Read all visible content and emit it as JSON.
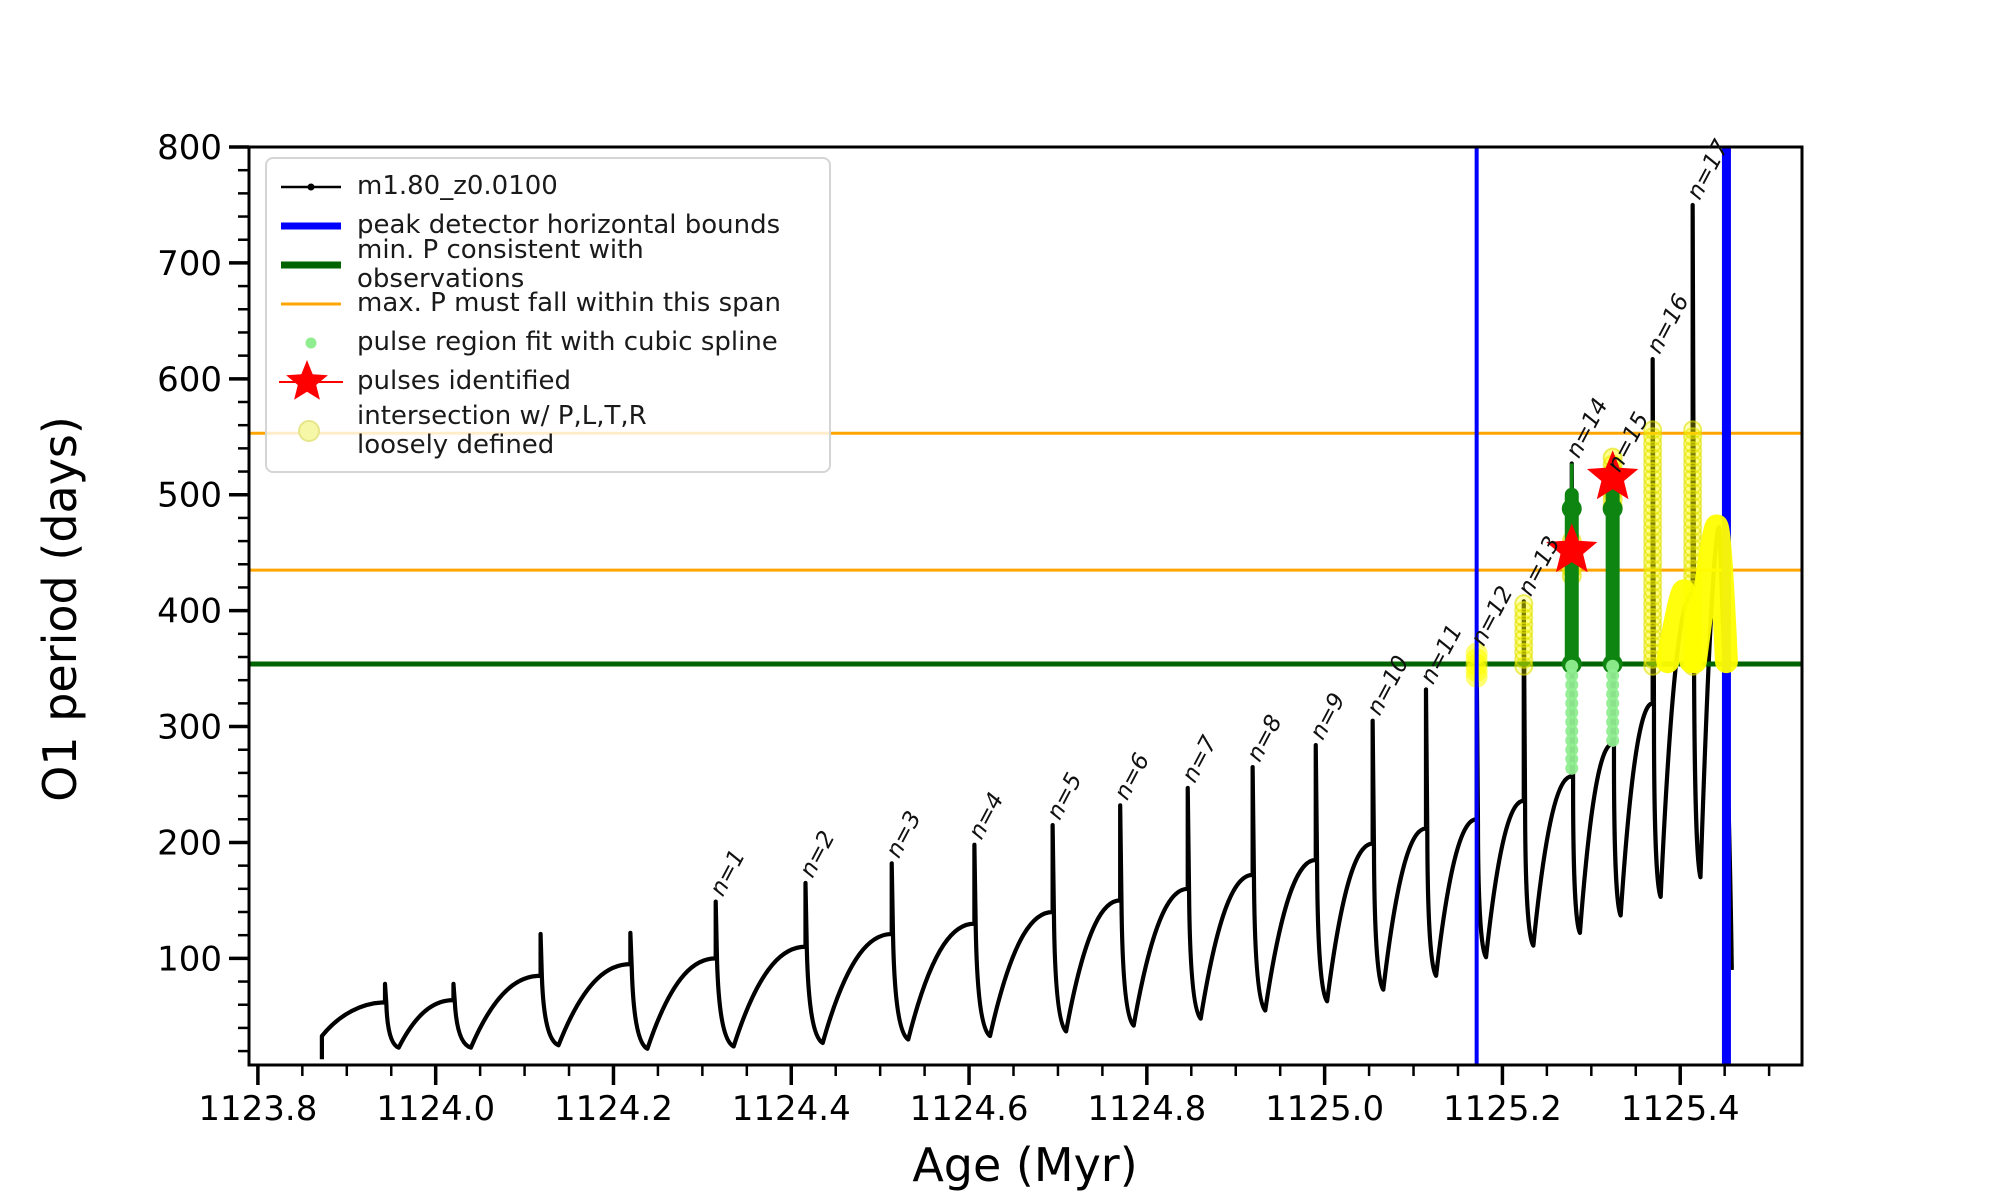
{
  "legend": {
    "items": [
      {
        "label": "m1.80_z0.0100",
        "marker": "line-dot",
        "color": "#000000"
      },
      {
        "label": "peak detector horizontal bounds",
        "marker": "thick-line",
        "color": "#0000FF"
      },
      {
        "label": "min. P consistent with observations",
        "marker": "thick-line",
        "color": "#006400"
      },
      {
        "label": "max. P must fall within this span",
        "marker": "line",
        "color": "#FFA500"
      },
      {
        "label": "pulse region fit with cubic spline",
        "marker": "dot",
        "color": "#90EE90"
      },
      {
        "label": "pulses identified",
        "marker": "star",
        "color": "#FF0000"
      },
      {
        "label": "intersection w/ P,L,T,R\nloosely defined",
        "marker": "big-dot",
        "color": "#F7F7A8"
      }
    ]
  },
  "chart_data": {
    "type": "line",
    "title": "",
    "xlabel": "Age (Myr)",
    "ylabel": "O1 period (days)",
    "xlim": [
      1123.79,
      1125.537
    ],
    "ylim": [
      8,
      800
    ],
    "x_ticks": [
      {
        "value": 1123.8,
        "label": "1123.8"
      },
      {
        "value": 1124.0,
        "label": "1124.0"
      },
      {
        "value": 1124.2,
        "label": "1124.2"
      },
      {
        "value": 1124.4,
        "label": "1124.4"
      },
      {
        "value": 1124.6,
        "label": "1124.6"
      },
      {
        "value": 1124.8,
        "label": "1124.8"
      },
      {
        "value": 1125.0,
        "label": "1125.0"
      },
      {
        "value": 1125.2,
        "label": "1125.2"
      },
      {
        "value": 1125.4,
        "label": "1125.4"
      }
    ],
    "y_ticks": [
      {
        "value": 100,
        "label": "100"
      },
      {
        "value": 200,
        "label": "200"
      },
      {
        "value": 300,
        "label": "300"
      },
      {
        "value": 400,
        "label": "400"
      },
      {
        "value": 500,
        "label": "500"
      },
      {
        "value": 600,
        "label": "600"
      },
      {
        "value": 700,
        "label": "700"
      },
      {
        "value": 800,
        "label": "800"
      }
    ],
    "x_minor_step": 0.05,
    "y_minor_step": 20,
    "grid": false,
    "legend_position": "upper left",
    "colors": {
      "track": "#000000",
      "peak_bounds": "#0000FF",
      "min_P": "#006400",
      "max_P": "#FFA500",
      "spline_fit": "#90EE90",
      "pulse_star": "#FF0000",
      "pulse_column": "#0E8510",
      "intersection": "#FFFF00"
    },
    "series_label": "m1.80_z0.0100",
    "track": {
      "start": {
        "age": 1123.872,
        "P": 13
      },
      "pulses": [
        {
          "label": null,
          "age": 1123.943,
          "shoulder": 62,
          "top": 78,
          "min_after": 23
        },
        {
          "label": null,
          "age": 1124.02,
          "shoulder": 64,
          "top": 78,
          "min_after": 23
        },
        {
          "label": null,
          "age": 1124.118,
          "shoulder": 85,
          "top": 121,
          "min_after": 25
        },
        {
          "label": null,
          "age": 1124.219,
          "shoulder": 95,
          "top": 122,
          "min_after": 22
        },
        {
          "label": "n=1",
          "age": 1124.315,
          "shoulder": 100,
          "top": 149,
          "min_after": 24
        },
        {
          "label": "n=2",
          "age": 1124.416,
          "shoulder": 110,
          "top": 165,
          "min_after": 27
        },
        {
          "label": "n=3",
          "age": 1124.513,
          "shoulder": 121,
          "top": 182,
          "min_after": 30
        },
        {
          "label": "n=4",
          "age": 1124.606,
          "shoulder": 130,
          "top": 198,
          "min_after": 33
        },
        {
          "label": "n=5",
          "age": 1124.694,
          "shoulder": 140,
          "top": 215,
          "min_after": 37
        },
        {
          "label": "n=6",
          "age": 1124.77,
          "shoulder": 150,
          "top": 232,
          "min_after": 42
        },
        {
          "label": "n=7",
          "age": 1124.846,
          "shoulder": 160,
          "top": 247,
          "min_after": 48
        },
        {
          "label": "n=8",
          "age": 1124.919,
          "shoulder": 172,
          "top": 265,
          "min_after": 55
        },
        {
          "label": "n=9",
          "age": 1124.99,
          "shoulder": 185,
          "top": 284,
          "min_after": 63
        },
        {
          "label": "n=10",
          "age": 1125.054,
          "shoulder": 199,
          "top": 305,
          "min_after": 73
        },
        {
          "label": "n=11",
          "age": 1125.114,
          "shoulder": 212,
          "top": 332,
          "min_after": 85
        },
        {
          "label": "n=12",
          "age": 1125.171,
          "shoulder": 220,
          "top": 365,
          "min_after": 101
        },
        {
          "label": "n=13",
          "age": 1125.224,
          "shoulder": 236,
          "top": 408,
          "min_after": 111
        },
        {
          "label": "n=14",
          "age": 1125.278,
          "shoulder": 257,
          "top": 527,
          "min_after": 122
        },
        {
          "label": "n=15",
          "age": 1125.324,
          "shoulder": 285,
          "top": 515,
          "min_after": 137
        },
        {
          "label": "n=16",
          "age": 1125.369,
          "shoulder": 320,
          "top": 617,
          "min_after": 153
        },
        {
          "label": "n=17",
          "age": 1125.414,
          "shoulder": 415,
          "top": 750,
          "min_after": 170
        }
      ],
      "end": {
        "peak_age": 1125.444,
        "peak_P": 472,
        "end_age": 1125.458,
        "end_P": 90
      }
    },
    "peak_detector_bounds": [
      {
        "x": 1125.171,
        "lw": 4
      },
      {
        "x": 1125.452,
        "lw": 9
      }
    ],
    "hlines": [
      {
        "y": 354,
        "role": "min_P",
        "lw": 5
      },
      {
        "y": 435,
        "role": "max_P",
        "lw": 3
      },
      {
        "y": 553,
        "role": "max_P",
        "lw": 3
      }
    ],
    "yellow_intersection": {
      "blob": {
        "x": 1125.171,
        "y0": 343,
        "y1": 363
      },
      "columns": [
        {
          "x": 1125.224,
          "y0": 352,
          "y1": 408
        },
        {
          "x": 1125.369,
          "y0": 352,
          "y1": 557
        },
        {
          "x": 1125.414,
          "y0": 352,
          "y1": 557
        }
      ],
      "clusters": [
        {
          "x": 1125.278,
          "y0": 430,
          "y1": 463
        },
        {
          "x": 1125.324,
          "y0": 490,
          "y1": 535
        }
      ],
      "humps": [
        {
          "x0": 1125.386,
          "apex_x": 1125.404,
          "apex_y": 417,
          "x1": 1125.412
        },
        {
          "x0": 1125.417,
          "apex_x": 1125.441,
          "apex_y": 473,
          "x1": 1125.452
        }
      ]
    },
    "pulse_columns": [
      {
        "x": 1125.278,
        "y0": 354,
        "y1": 500,
        "spike_top": 527
      },
      {
        "x": 1125.324,
        "y0": 354,
        "y1": 500,
        "spike_top": null
      }
    ],
    "spline_regions": [
      {
        "x": 1125.278,
        "y0": 258,
        "y1": 352
      },
      {
        "x": 1125.324,
        "y0": 287,
        "y1": 352
      }
    ],
    "stars": [
      {
        "x": 1125.278,
        "y": 452
      },
      {
        "x": 1125.324,
        "y": 515
      }
    ]
  }
}
